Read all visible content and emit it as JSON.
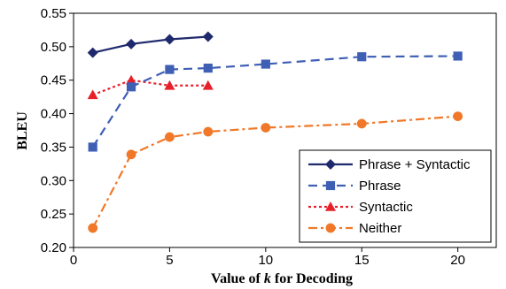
{
  "chart_data": {
    "type": "line",
    "xlabel_prefix": "Value of ",
    "xlabel_var": "k",
    "xlabel_suffix": " for Decoding",
    "ylabel": "BLEU",
    "xlim": [
      0,
      22
    ],
    "ylim": [
      0.2,
      0.55
    ],
    "xticks": [
      0,
      5,
      10,
      15,
      20
    ],
    "yticks": [
      0.2,
      0.25,
      0.3,
      0.35,
      0.4,
      0.45,
      0.5,
      0.55
    ],
    "xtick_labels": [
      "0",
      "5",
      "10",
      "15",
      "20"
    ],
    "ytick_labels": [
      "0.20",
      "0.25",
      "0.30",
      "0.35",
      "0.40",
      "0.45",
      "0.50",
      "0.55"
    ],
    "grid": false,
    "legend_position": "bottom-right",
    "series": [
      {
        "name": "Phrase + Syntactic",
        "color": "#1f2a6e",
        "dash": "solid",
        "marker": "diamond",
        "x": [
          1,
          3,
          5,
          7
        ],
        "values": [
          0.491,
          0.504,
          0.511,
          0.515
        ]
      },
      {
        "name": "Phrase",
        "color": "#3f5fb5",
        "dash": "dashed",
        "marker": "square",
        "x": [
          1,
          3,
          5,
          7,
          10,
          15,
          20
        ],
        "values": [
          0.35,
          0.44,
          0.466,
          0.468,
          0.474,
          0.485,
          0.486
        ]
      },
      {
        "name": "Syntactic",
        "color": "#e8202a",
        "dash": "dotted",
        "marker": "triangle",
        "x": [
          1,
          3,
          5,
          7
        ],
        "values": [
          0.428,
          0.45,
          0.442,
          0.442
        ]
      },
      {
        "name": "Neither",
        "color": "#f07828",
        "dash": "dashdot",
        "marker": "circle",
        "x": [
          1,
          3,
          5,
          7,
          10,
          15,
          20
        ],
        "values": [
          0.229,
          0.339,
          0.365,
          0.373,
          0.379,
          0.385,
          0.396
        ]
      }
    ]
  }
}
